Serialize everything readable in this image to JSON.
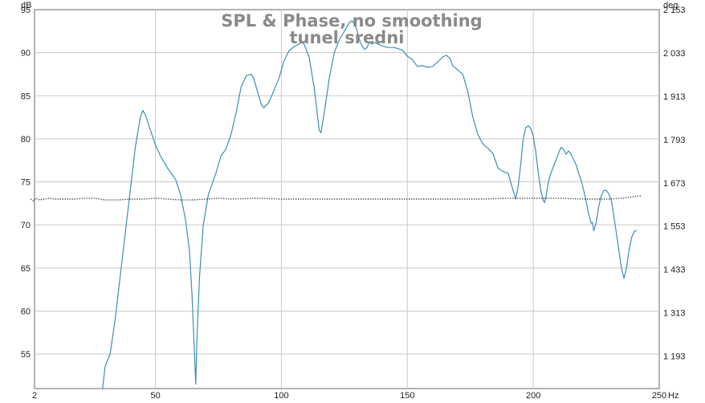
{
  "chart_data": {
    "type": "line",
    "title_lines": [
      "SPL & Phase, no smoothing",
      "tunel sredni"
    ],
    "left_unit": "dB",
    "right_unit": "deg",
    "x_unit": "Hz",
    "xlim": [
      2,
      250
    ],
    "ylim_left": [
      51,
      95
    ],
    "ylim_right": [
      1103,
      2153
    ],
    "grid": true,
    "x_ticks": [
      {
        "value": 2,
        "label": "2"
      },
      {
        "value": 50,
        "label": "50"
      },
      {
        "value": 100,
        "label": "100"
      },
      {
        "value": 150,
        "label": "150"
      },
      {
        "value": 200,
        "label": "200"
      },
      {
        "value": 250,
        "label": "250"
      }
    ],
    "left_ticks": [
      {
        "value": 95,
        "label": "95"
      },
      {
        "value": 90,
        "label": "90"
      },
      {
        "value": 85,
        "label": "85"
      },
      {
        "value": 80,
        "label": "80"
      },
      {
        "value": 75,
        "label": "75"
      },
      {
        "value": 70,
        "label": "70"
      },
      {
        "value": 65,
        "label": "65"
      },
      {
        "value": 60,
        "label": "60"
      },
      {
        "value": 55,
        "label": "55"
      }
    ],
    "right_ticks": [
      {
        "value": 2153,
        "label": "2 153"
      },
      {
        "value": 2033,
        "label": "2 033"
      },
      {
        "value": 1913,
        "label": "1 913"
      },
      {
        "value": 1793,
        "label": "1 793"
      },
      {
        "value": 1673,
        "label": "1 673"
      },
      {
        "value": 1553,
        "label": "1 553"
      },
      {
        "value": 1433,
        "label": "1 433"
      },
      {
        "value": 1313,
        "label": "1 313"
      },
      {
        "value": 1193,
        "label": "1 193"
      }
    ],
    "series": [
      {
        "axis": "left",
        "color": "#3a8fb7",
        "style": "solid",
        "points": [
          [
            29,
            51.0
          ],
          [
            30,
            53.5
          ],
          [
            31,
            54.3
          ],
          [
            32,
            55.0
          ],
          [
            34,
            59.0
          ],
          [
            36,
            64.0
          ],
          [
            38,
            69.0
          ],
          [
            40,
            74.0
          ],
          [
            42,
            79.0
          ],
          [
            44,
            82.5
          ],
          [
            45,
            83.3
          ],
          [
            46,
            82.8
          ],
          [
            48,
            81.0
          ],
          [
            50,
            79.3
          ],
          [
            52,
            78.0
          ],
          [
            55,
            76.5
          ],
          [
            58,
            75.3
          ],
          [
            60,
            73.5
          ],
          [
            62,
            70.5
          ],
          [
            63.5,
            67.0
          ],
          [
            64.5,
            62.0
          ],
          [
            65.5,
            55.0
          ],
          [
            66,
            51.5
          ],
          [
            66.5,
            57.0
          ],
          [
            67.5,
            64.0
          ],
          [
            69,
            70.0
          ],
          [
            71,
            73.5
          ],
          [
            74,
            76.0
          ],
          [
            76,
            78.0
          ],
          [
            78,
            78.8
          ],
          [
            80,
            80.5
          ],
          [
            82,
            83.0
          ],
          [
            84,
            86.0
          ],
          [
            86,
            87.3
          ],
          [
            88,
            87.5
          ],
          [
            89,
            87.0
          ],
          [
            90,
            86.0
          ],
          [
            91,
            85.0
          ],
          [
            92,
            84.0
          ],
          [
            93,
            83.6
          ],
          [
            95,
            84.2
          ],
          [
            97,
            85.6
          ],
          [
            99,
            87.0
          ],
          [
            101,
            89.0
          ],
          [
            103,
            90.2
          ],
          [
            105,
            90.7
          ],
          [
            107,
            91.0
          ],
          [
            108,
            91.3
          ],
          [
            109,
            91.0
          ],
          [
            111,
            89.5
          ],
          [
            113,
            86.0
          ],
          [
            114,
            83.5
          ],
          [
            115,
            81.0
          ],
          [
            115.7,
            80.7
          ],
          [
            117,
            83.0
          ],
          [
            119,
            87.0
          ],
          [
            121,
            90.0
          ],
          [
            123,
            91.5
          ],
          [
            125,
            92.5
          ],
          [
            127,
            93.5
          ],
          [
            128,
            93.7
          ],
          [
            129,
            93.3
          ],
          [
            130,
            92.6
          ],
          [
            131,
            91.5
          ],
          [
            132,
            90.8
          ],
          [
            133,
            90.4
          ],
          [
            134,
            90.6
          ],
          [
            135,
            91.3
          ],
          [
            136,
            91.0
          ],
          [
            137,
            91.2
          ],
          [
            139,
            90.9
          ],
          [
            142,
            90.6
          ],
          [
            145,
            90.6
          ],
          [
            148,
            90.3
          ],
          [
            150,
            89.6
          ],
          [
            152,
            89.2
          ],
          [
            154,
            88.4
          ],
          [
            156,
            88.5
          ],
          [
            158,
            88.3
          ],
          [
            160,
            88.4
          ],
          [
            162,
            88.9
          ],
          [
            164,
            89.5
          ],
          [
            165.5,
            89.7
          ],
          [
            167,
            89.3
          ],
          [
            168,
            88.5
          ],
          [
            170,
            88.0
          ],
          [
            172,
            87.5
          ],
          [
            174,
            85.5
          ],
          [
            176,
            82.5
          ],
          [
            178,
            80.5
          ],
          [
            180,
            79.4
          ],
          [
            182,
            78.9
          ],
          [
            184,
            78.3
          ],
          [
            186,
            76.6
          ],
          [
            188,
            76.2
          ],
          [
            190,
            76.0
          ],
          [
            191,
            75.0
          ],
          [
            192,
            74.0
          ],
          [
            193,
            73.0
          ],
          [
            194,
            74.5
          ],
          [
            195,
            77.0
          ],
          [
            196,
            80.0
          ],
          [
            197,
            81.3
          ],
          [
            198,
            81.5
          ],
          [
            199,
            81.2
          ],
          [
            200,
            80.3
          ],
          [
            201,
            78.5
          ],
          [
            202,
            76.0
          ],
          [
            203,
            74.0
          ],
          [
            204,
            72.8
          ],
          [
            204.5,
            72.6
          ],
          [
            205,
            73.2
          ],
          [
            206,
            75.0
          ],
          [
            207,
            76.0
          ],
          [
            208,
            76.8
          ],
          [
            209,
            77.5
          ],
          [
            210,
            78.3
          ],
          [
            211,
            79.0
          ],
          [
            212,
            78.8
          ],
          [
            213,
            78.2
          ],
          [
            214,
            78.6
          ],
          [
            215,
            78.2
          ],
          [
            216,
            77.6
          ],
          [
            217,
            77.0
          ],
          [
            218,
            76.0
          ],
          [
            219,
            75.2
          ],
          [
            220,
            74.0
          ],
          [
            221,
            72.8
          ],
          [
            222,
            71.2
          ],
          [
            223,
            70.2
          ],
          [
            223.5,
            70.3
          ],
          [
            224,
            69.3
          ],
          [
            225,
            70.3
          ],
          [
            226,
            72.2
          ],
          [
            227,
            73.4
          ],
          [
            228,
            74.0
          ],
          [
            229,
            74.0
          ],
          [
            230,
            73.6
          ],
          [
            231,
            72.8
          ],
          [
            232,
            71.0
          ],
          [
            233,
            69.0
          ],
          [
            234,
            67.0
          ],
          [
            235,
            65.0
          ],
          [
            236,
            63.8
          ],
          [
            237,
            65.0
          ],
          [
            238,
            67.0
          ],
          [
            239,
            68.5
          ],
          [
            240,
            69.2
          ],
          [
            241,
            69.4
          ]
        ]
      },
      {
        "axis": "left",
        "color": "#444444",
        "style": "dotted",
        "points": [
          [
            0.5,
            73.0
          ],
          [
            1.5,
            72.8
          ],
          [
            2.5,
            73.1
          ],
          [
            4,
            72.9
          ],
          [
            6,
            73.0
          ],
          [
            8,
            73.1
          ],
          [
            10,
            73.0
          ],
          [
            14,
            73.0
          ],
          [
            18,
            73.0
          ],
          [
            22,
            73.1
          ],
          [
            26,
            73.1
          ],
          [
            30,
            72.9
          ],
          [
            35,
            72.9
          ],
          [
            40,
            73.0
          ],
          [
            45,
            73.0
          ],
          [
            50,
            73.1
          ],
          [
            55,
            73.0
          ],
          [
            60,
            72.9
          ],
          [
            65,
            72.9
          ],
          [
            70,
            73.0
          ],
          [
            75,
            73.1
          ],
          [
            80,
            73.0
          ],
          [
            90,
            73.1
          ],
          [
            100,
            73.0
          ],
          [
            110,
            73.0
          ],
          [
            120,
            73.0
          ],
          [
            130,
            73.0
          ],
          [
            140,
            73.0
          ],
          [
            150,
            73.0
          ],
          [
            160,
            73.0
          ],
          [
            170,
            73.0
          ],
          [
            180,
            73.0
          ],
          [
            190,
            73.1
          ],
          [
            200,
            73.1
          ],
          [
            210,
            73.1
          ],
          [
            220,
            73.0
          ],
          [
            230,
            73.0
          ],
          [
            235,
            73.1
          ],
          [
            240,
            73.3
          ],
          [
            243,
            73.4
          ]
        ]
      }
    ]
  }
}
